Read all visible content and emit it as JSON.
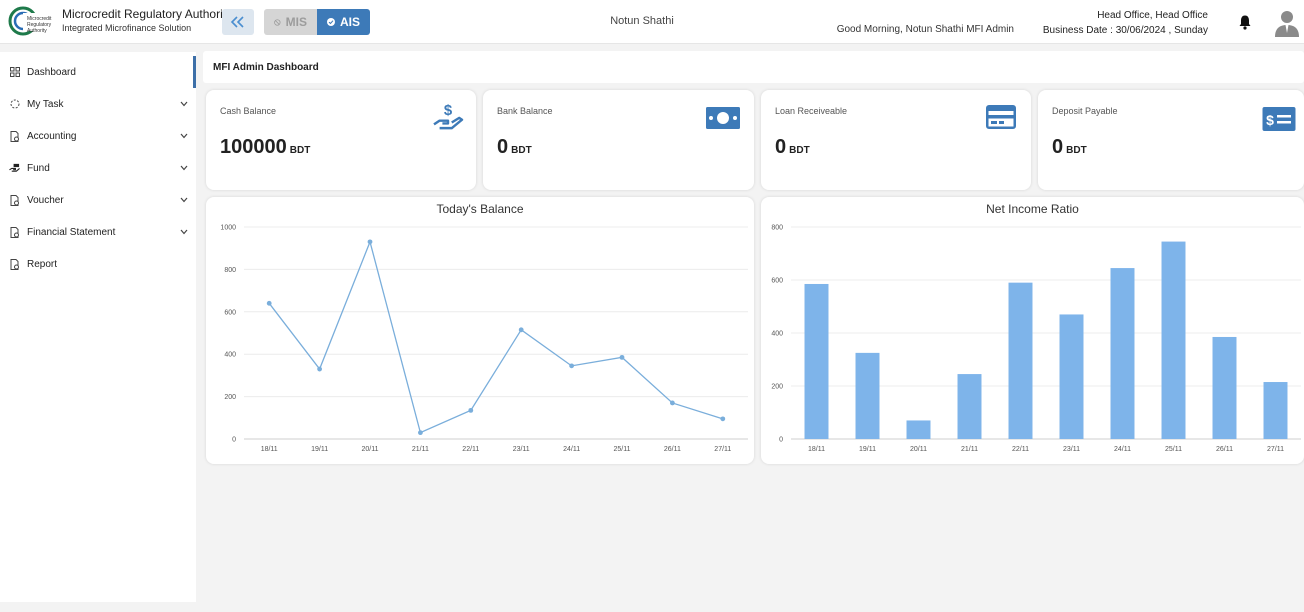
{
  "header": {
    "brand_title": "Microcredit Regulatory Authority",
    "brand_subtitle": "Integrated Microfinance Solution",
    "toggle_mis": "MIS",
    "toggle_ais": "AIS",
    "org_name": "Notun Shathi",
    "greeting": "Good Morning, Notun Shathi MFI Admin",
    "office": "Head Office, Head Office",
    "business_date": "Business Date : 30/06/2024 , Sunday"
  },
  "sidebar": {
    "items": [
      {
        "label": "Dashboard",
        "icon": "grid-icon",
        "expandable": false
      },
      {
        "label": "My Task",
        "icon": "task-circle-icon",
        "expandable": true
      },
      {
        "label": "Accounting",
        "icon": "document-gear-icon",
        "expandable": true
      },
      {
        "label": "Fund",
        "icon": "hand-money-icon",
        "expandable": true
      },
      {
        "label": "Voucher",
        "icon": "document-gear-icon",
        "expandable": true
      },
      {
        "label": "Financial Statement",
        "icon": "document-gear-icon",
        "expandable": true
      },
      {
        "label": "Report",
        "icon": "document-gear-icon",
        "expandable": false
      }
    ]
  },
  "main": {
    "title": "MFI Admin Dashboard",
    "cards": [
      {
        "label": "Cash Balance",
        "value": "100000",
        "unit": "BDT",
        "icon": "hand-dollar-icon"
      },
      {
        "label": "Bank Balance",
        "value": "0",
        "unit": "BDT",
        "icon": "banknote-icon"
      },
      {
        "label": "Loan Receiveable",
        "value": "0",
        "unit": "BDT",
        "icon": "credit-card-icon"
      },
      {
        "label": "Deposit Payable",
        "value": "0",
        "unit": "BDT",
        "icon": "dollar-bill-icon"
      }
    ]
  },
  "colors": {
    "accent": "#3d7ab8",
    "line": "#7aaedb",
    "bar": "#7eb4ea"
  },
  "chart_data": [
    {
      "type": "line",
      "title": "Today's Balance",
      "categories": [
        "18/11",
        "19/11",
        "20/11",
        "21/11",
        "22/11",
        "23/11",
        "24/11",
        "25/11",
        "26/11",
        "27/11"
      ],
      "values": [
        640,
        330,
        930,
        30,
        135,
        515,
        345,
        385,
        170,
        95
      ],
      "ylim": [
        0,
        1000
      ],
      "yticks": [
        0,
        200,
        400,
        600,
        800,
        1000
      ],
      "grid": true
    },
    {
      "type": "bar",
      "title": "Net Income Ratio",
      "categories": [
        "18/11",
        "19/11",
        "20/11",
        "21/11",
        "22/11",
        "23/11",
        "24/11",
        "25/11",
        "26/11",
        "27/11"
      ],
      "values": [
        585,
        325,
        70,
        245,
        590,
        470,
        645,
        745,
        385,
        215
      ],
      "ylim": [
        0,
        800
      ],
      "yticks": [
        0,
        200,
        400,
        600,
        800
      ],
      "grid": true
    }
  ]
}
